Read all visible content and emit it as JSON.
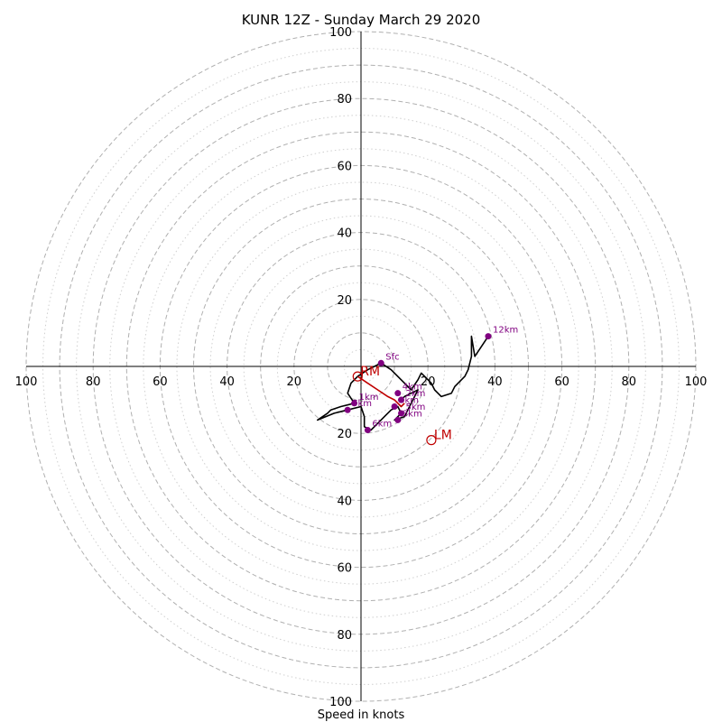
{
  "chart_data": {
    "type": "line",
    "title": "KUNR 12Z - Sunday March 29 2020",
    "xlabel": "Speed in knots",
    "axis_range": [
      -100,
      100
    ],
    "tick_labels": {
      "x": [
        "100",
        "80",
        "60",
        "40",
        "20",
        "20",
        "40",
        "60",
        "80",
        "100"
      ],
      "y": [
        "100",
        "80",
        "60",
        "40",
        "20",
        "20",
        "40",
        "60",
        "80",
        "100"
      ]
    },
    "rings_major": [
      10,
      20,
      30,
      40,
      50,
      60,
      70,
      80,
      90,
      100
    ],
    "rings_minor": [
      5,
      15,
      25,
      35,
      45,
      55,
      65,
      75,
      85,
      95
    ],
    "colors": {
      "hodograph": "#000000",
      "height_marker": "#800080",
      "storm_motion": "#c00000",
      "grid": "#b0b0b0"
    },
    "hodograph": {
      "u": [
        6,
        9,
        12,
        15,
        17,
        18,
        19,
        21,
        22,
        24,
        27,
        28,
        31,
        32,
        33,
        33,
        34,
        36,
        38
      ],
      "v": [
        1,
        -1,
        -4,
        -7,
        -4,
        -2,
        -3,
        -5,
        -7,
        -9,
        -8,
        -6,
        -3,
        -1,
        3,
        9,
        3,
        6,
        9
      ]
    },
    "hodograph_lower": {
      "u": [
        6,
        4,
        2,
        -1,
        -3,
        -4,
        -2,
        -6,
        -9,
        -10,
        -13,
        -8,
        -4,
        0,
        1,
        1,
        3,
        5,
        7,
        9,
        11,
        12,
        10,
        13,
        14,
        15,
        16,
        17,
        15,
        13,
        12
      ],
      "v": [
        1,
        0,
        -1,
        -3,
        -5,
        -8,
        -11,
        -12,
        -13,
        -14,
        -16,
        -14,
        -13,
        -12,
        -15,
        -18,
        -19,
        -17,
        -15,
        -13,
        -12,
        -14,
        -16,
        -15,
        -13,
        -11,
        -9,
        -7,
        -8,
        -9,
        -10
      ]
    },
    "height_markers": [
      {
        "label": "Sfc",
        "u": 6,
        "v": 1
      },
      {
        "label": "4km",
        "u": 11,
        "v": -8
      },
      {
        "label": "2km",
        "u": 12,
        "v": -10
      },
      {
        "label": "3km",
        "u": 10,
        "v": -12
      },
      {
        "label": "5km",
        "u": 12,
        "v": -14
      },
      {
        "label": "8km",
        "u": 11,
        "v": -16
      },
      {
        "label": "1km",
        "u": -2,
        "v": -11
      },
      {
        "label": "7km",
        "u": -4,
        "v": -13
      },
      {
        "label": "6km",
        "u": 2,
        "v": -19
      },
      {
        "label": "12km",
        "u": 38,
        "v": 9
      }
    ],
    "storm_motions": [
      {
        "label": "RM",
        "u": -1,
        "v": -3
      },
      {
        "label": "LM",
        "u": 21,
        "v": -22
      }
    ],
    "red_vector": {
      "u": [
        -1,
        2,
        5,
        8,
        10,
        12,
        13
      ],
      "v": [
        -3,
        -5,
        -7,
        -9,
        -10,
        -12,
        -11
      ]
    }
  }
}
